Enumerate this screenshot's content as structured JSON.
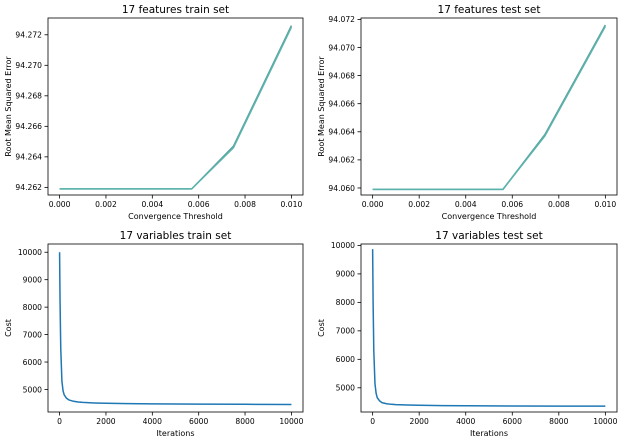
{
  "chart_data": [
    {
      "type": "line",
      "title": "17 features train set",
      "xlabel": "Convergence Threshold",
      "ylabel": "Root Mean Squared Error",
      "xlim": [
        -0.0005,
        0.0105
      ],
      "ylim": [
        94.2615,
        94.2731
      ],
      "x_ticks": [
        0.0,
        0.002,
        0.004,
        0.006,
        0.008,
        0.01
      ],
      "x_tick_labels": [
        "0.000",
        "0.002",
        "0.004",
        "0.006",
        "0.008",
        "0.010"
      ],
      "y_ticks": [
        94.262,
        94.264,
        94.266,
        94.268,
        94.27,
        94.272
      ],
      "y_tick_labels": [
        "94.262",
        "94.264",
        "94.266",
        "94.268",
        "94.270",
        "94.272"
      ],
      "series": [
        {
          "color": "#5f9ea0",
          "x": [
            0.0,
            0.0057,
            0.0075,
            0.01
          ],
          "y": [
            94.2619,
            94.2619,
            94.2647,
            94.2726
          ]
        },
        {
          "color": "#5ab4ac",
          "x": [
            0.0,
            0.0057,
            0.0075,
            0.01
          ],
          "y": [
            94.2619,
            94.2619,
            94.2646,
            94.2725
          ]
        }
      ]
    },
    {
      "type": "line",
      "title": "17 features test set",
      "xlabel": "Convergence Threshold",
      "ylabel": "Root Mean Squared Error",
      "xlim": [
        -0.0005,
        0.0105
      ],
      "ylim": [
        94.0595,
        94.0721
      ],
      "x_ticks": [
        0.0,
        0.002,
        0.004,
        0.006,
        0.008,
        0.01
      ],
      "x_tick_labels": [
        "0.000",
        "0.002",
        "0.004",
        "0.006",
        "0.008",
        "0.010"
      ],
      "y_ticks": [
        94.06,
        94.062,
        94.064,
        94.066,
        94.068,
        94.07,
        94.072
      ],
      "y_tick_labels": [
        "94.060",
        "94.062",
        "94.064",
        "94.066",
        "94.068",
        "94.070",
        "94.072"
      ],
      "series": [
        {
          "color": "#5f9ea0",
          "x": [
            0.0,
            0.0056,
            0.0074,
            0.01
          ],
          "y": [
            94.0599,
            94.0599,
            94.0638,
            94.0716
          ]
        },
        {
          "color": "#5ab4ac",
          "x": [
            0.0,
            0.0056,
            0.0074,
            0.01
          ],
          "y": [
            94.0599,
            94.0599,
            94.0637,
            94.0715
          ]
        }
      ]
    },
    {
      "type": "line",
      "title": "17 variables train set",
      "xlabel": "Iterations",
      "ylabel": "Cost",
      "xlim": [
        -500,
        10500
      ],
      "ylim": [
        4180,
        10300
      ],
      "x_ticks": [
        0,
        2000,
        4000,
        6000,
        8000,
        10000
      ],
      "x_tick_labels": [
        "0",
        "2000",
        "4000",
        "6000",
        "8000",
        "10000"
      ],
      "y_ticks": [
        5000,
        6000,
        7000,
        8000,
        9000,
        10000
      ],
      "y_tick_labels": [
        "5000",
        "6000",
        "7000",
        "8000",
        "9000",
        "10000"
      ],
      "series": [
        {
          "color": "#1f77b4",
          "x": [
            0,
            20,
            50,
            100,
            150,
            200,
            300,
            400,
            600,
            800,
            1000,
            1500,
            2000,
            3000,
            4000,
            6000,
            8000,
            10000
          ],
          "y": [
            10000,
            8200,
            6500,
            5300,
            4950,
            4800,
            4680,
            4620,
            4570,
            4545,
            4530,
            4510,
            4497,
            4485,
            4477,
            4466,
            4460,
            4455
          ]
        }
      ]
    },
    {
      "type": "line",
      "title": "17 variables test set",
      "xlabel": "Iterations",
      "ylabel": "Cost",
      "xlim": [
        -500,
        10500
      ],
      "ylim": [
        4150,
        10050
      ],
      "x_ticks": [
        0,
        2000,
        4000,
        6000,
        8000,
        10000
      ],
      "x_tick_labels": [
        "0",
        "2000",
        "4000",
        "6000",
        "8000",
        "10000"
      ],
      "y_ticks": [
        5000,
        6000,
        7000,
        8000,
        9000,
        10000
      ],
      "y_tick_labels": [
        "5000",
        "6000",
        "7000",
        "8000",
        "9000",
        "10000"
      ],
      "series": [
        {
          "color": "#1f77b4",
          "x": [
            0,
            20,
            50,
            100,
            150,
            200,
            300,
            400,
            600,
            800,
            1000,
            1500,
            2000,
            3000,
            4000,
            6000,
            8000,
            10000
          ],
          "y": [
            9870,
            8000,
            6300,
            5150,
            4800,
            4650,
            4540,
            4480,
            4440,
            4420,
            4410,
            4395,
            4385,
            4375,
            4370,
            4362,
            4358,
            4355
          ]
        }
      ]
    }
  ]
}
